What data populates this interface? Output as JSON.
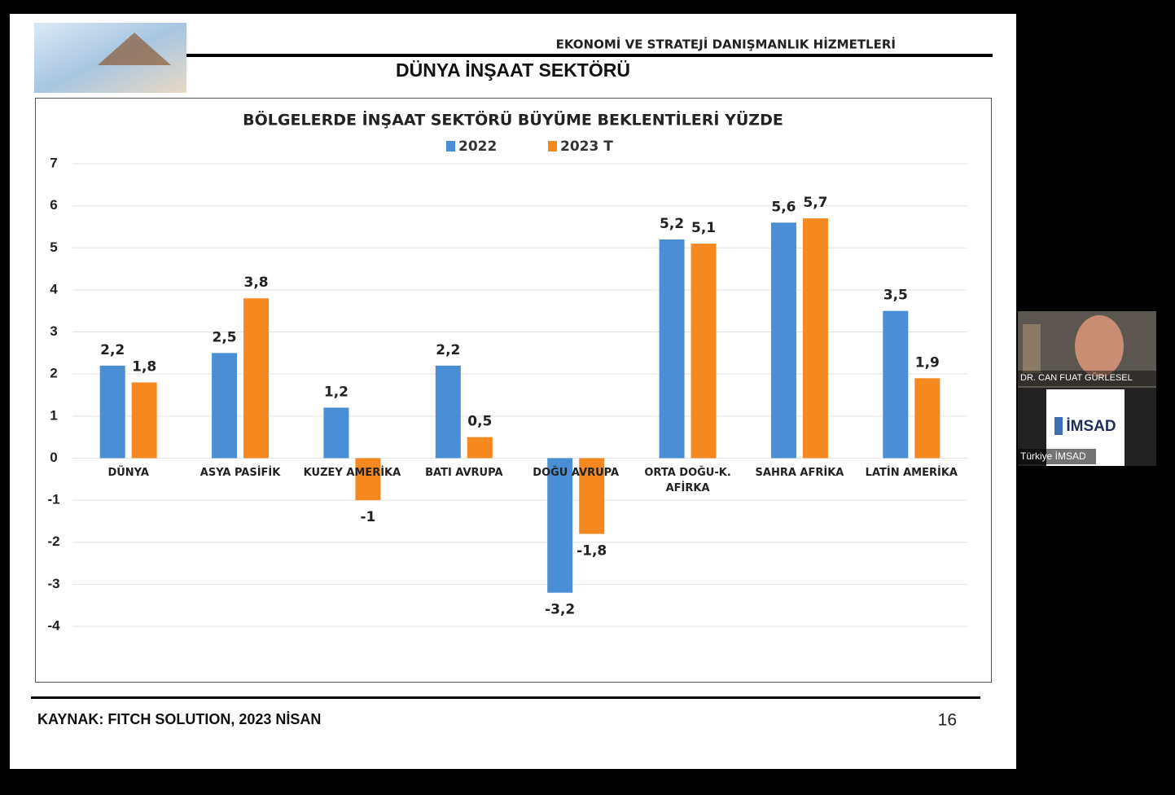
{
  "header": {
    "company": "EKONOMİ VE STRATEJİ DANIŞMANLIK HİZMETLERİ",
    "title": "DÜNYA İNŞAAT SEKTÖRÜ"
  },
  "chart_data": {
    "type": "bar",
    "title": "BÖLGELERDE İNŞAAT SEKTÖRÜ BÜYÜME BEKLENTİLERİ YÜZDE",
    "categories": [
      "DÜNYA",
      "ASYA PASİFİK",
      "KUZEY AMERİKA",
      "BATI AVRUPA",
      "DOĞU AVRUPA",
      "ORTA DOĞU-K. AFİRKA",
      "SAHRA AFRİKA",
      "LATİN AMERİKA"
    ],
    "series": [
      {
        "name": "2022",
        "color": "#4a8fd6",
        "values": [
          2.2,
          2.5,
          1.2,
          2.2,
          -3.2,
          5.2,
          5.6,
          3.5
        ],
        "value_labels": [
          "2,2",
          "2,5",
          "1,2",
          "2,2",
          "-3,2",
          "5,2",
          "5,6",
          "3,5"
        ]
      },
      {
        "name": "2023 T",
        "color": "#f5891f",
        "values": [
          1.8,
          3.8,
          -1,
          0.5,
          -1.8,
          5.1,
          5.7,
          1.9
        ],
        "value_labels": [
          "1,8",
          "3,8",
          "-1",
          "0,5",
          "-1,8",
          "5,1",
          "5,7",
          "1,9"
        ]
      }
    ],
    "ylim": [
      -4,
      7
    ],
    "yticks": [
      -4,
      -3,
      -2,
      -1,
      0,
      1,
      2,
      3,
      4,
      5,
      6,
      7
    ],
    "grid": true
  },
  "footer": {
    "source": "KAYNAK: FITCH SOLUTION, 2023 NİSAN",
    "page": "16"
  },
  "participants": [
    {
      "name": "DR. CAN FUAT GÜRLESEL"
    },
    {
      "name": "Türkiye İMSAD",
      "logo": "İMSAD"
    }
  ]
}
